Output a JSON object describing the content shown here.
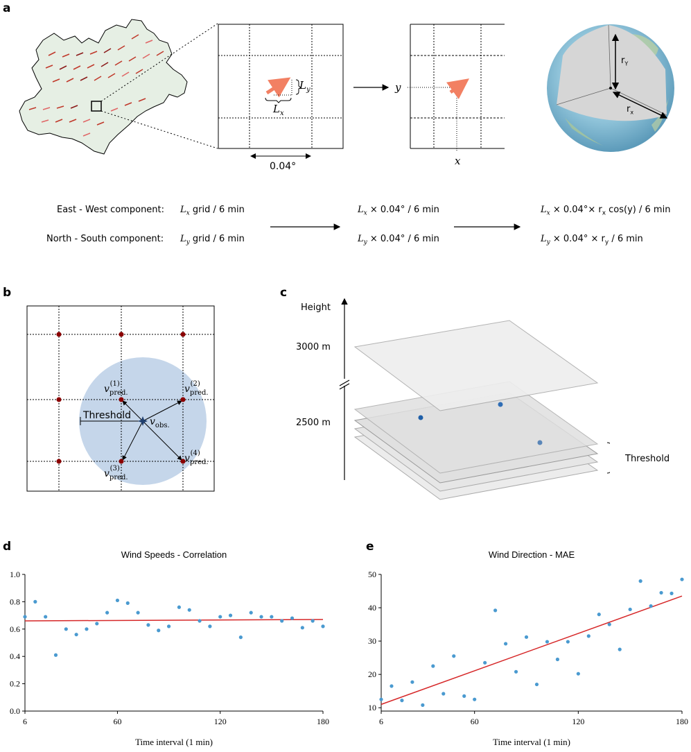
{
  "panels": {
    "a": "a",
    "b": "b",
    "c": "c",
    "d": "d",
    "e": "e"
  },
  "panel_a": {
    "grid_spacing": "0.04°",
    "lx": "L",
    "lx_sub": "x",
    "ly": "L",
    "ly_sub": "y",
    "axis_y": "y",
    "axis_x": "x",
    "earth_ry": "r",
    "earth_ry_sub": "Y",
    "earth_rx": "r",
    "earth_rx_sub": "x",
    "ew_label": "East - West  component:",
    "ns_label": "North - South  component:",
    "ew_step1": "grid / 6 min",
    "ns_step1": "grid / 6 min",
    "ew_step2": "× 0.04° / 6 min",
    "ns_step2": "× 0.04° / 6 min",
    "ew_step3_pre": "× 0.04°× r",
    "ew_step3_sub": "x",
    "ew_step3_post": " cos(y) / 6 min",
    "ns_step3_pre": "× 0.04° × r",
    "ns_step3_sub": "y",
    "ns_step3_post": " / 6 min"
  },
  "panel_b": {
    "threshold": "Threshold",
    "v": "v",
    "pred": "pred.",
    "obs": "obs.",
    "sup1": "(1)",
    "sup2": "(2)",
    "sup3": "(3)",
    "sup4": "(4)"
  },
  "panel_c": {
    "height": "Height",
    "h3000": "3000 m",
    "h2500": "2500 m",
    "threshold": "Threshold"
  },
  "colors": {
    "scatter": "#4a9ad0",
    "fit": "#d62728",
    "grid_point": "#8b0000",
    "threshold_circle": "#c5d6ea",
    "salmon_arrow": "#f28063"
  },
  "chart_data": [
    {
      "type": "scatter",
      "title": "Wind Speeds - Correlation",
      "xlabel": "Time interval (1 min)",
      "ylabel": "",
      "xlim": [
        6,
        180
      ],
      "ylim": [
        0.0,
        1.0
      ],
      "xticks": [
        6,
        60,
        120,
        180
      ],
      "yticks": [
        "0.0",
        "0.2",
        "0.4",
        "0.6",
        "0.8",
        "1.0"
      ],
      "x": [
        6,
        12,
        18,
        24,
        30,
        36,
        42,
        48,
        54,
        60,
        66,
        72,
        78,
        84,
        90,
        96,
        102,
        108,
        114,
        120,
        126,
        132,
        138,
        144,
        150,
        156,
        162,
        168,
        174,
        180
      ],
      "y": [
        0.69,
        0.8,
        0.69,
        0.41,
        0.6,
        0.56,
        0.6,
        0.64,
        0.72,
        0.81,
        0.79,
        0.72,
        0.63,
        0.59,
        0.62,
        0.76,
        0.74,
        0.66,
        0.62,
        0.69,
        0.7,
        0.54,
        0.72,
        0.69,
        0.69,
        0.66,
        0.68,
        0.61,
        0.66,
        0.62
      ],
      "fit": {
        "x": [
          6,
          180
        ],
        "y": [
          0.66,
          0.67
        ]
      }
    },
    {
      "type": "scatter",
      "title": "Wind Direction - MAE",
      "xlabel": "Time interval (1 min)",
      "ylabel": "",
      "xlim": [
        6,
        180
      ],
      "ylim": [
        9,
        50
      ],
      "xticks": [
        6,
        60,
        120,
        180
      ],
      "yticks": [
        "10",
        "20",
        "30",
        "40",
        "50"
      ],
      "x": [
        6,
        12,
        18,
        24,
        30,
        36,
        42,
        48,
        54,
        60,
        66,
        72,
        78,
        84,
        90,
        96,
        102,
        108,
        114,
        120,
        126,
        132,
        138,
        144,
        150,
        156,
        162,
        168,
        174,
        180
      ],
      "y": [
        12.5,
        16.5,
        12.2,
        17.7,
        10.8,
        22.5,
        14.2,
        25.5,
        13.5,
        12.5,
        23.5,
        39.2,
        29.2,
        20.8,
        31.2,
        17.0,
        29.8,
        24.5,
        29.8,
        20.2,
        31.5,
        38.0,
        35.0,
        27.5,
        39.5,
        48.0,
        40.5,
        44.5,
        44.3,
        48.5
      ],
      "fit": {
        "x": [
          6,
          180
        ],
        "y": [
          11.0,
          43.5
        ]
      }
    }
  ]
}
